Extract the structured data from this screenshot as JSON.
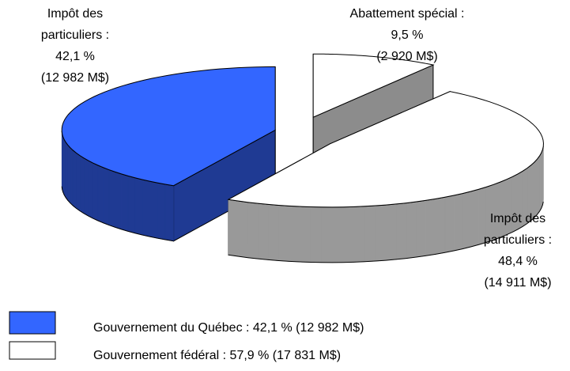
{
  "chart_data": {
    "type": "pie3d",
    "categories": [
      "Impôt des particuliers :",
      "Abattement spécial :",
      "Impôt des particuliers :"
    ],
    "values": [
      42.1,
      9.5,
      48.4
    ],
    "value_labels": [
      "42,1 %",
      "9,5 %",
      "48,4 %"
    ],
    "amounts": [
      12982,
      2920,
      14911
    ],
    "amount_labels": [
      "(12 982 M$)",
      "(2 920 M$)",
      "(14 911 M$)"
    ],
    "colors": [
      "#3366ff",
      "#ffffff",
      "#ffffff"
    ],
    "side_colors": [
      "#1f3a93",
      "#8c8c8c",
      "#999999"
    ],
    "legend": [
      {
        "label": "Gouvernement du Québec : 42,1 % (12 982 M$)",
        "color": "#3366ff"
      },
      {
        "label": "Gouvernement fédéral : 57,9 % (17 831 M$)",
        "color": "#ffffff"
      }
    ]
  }
}
